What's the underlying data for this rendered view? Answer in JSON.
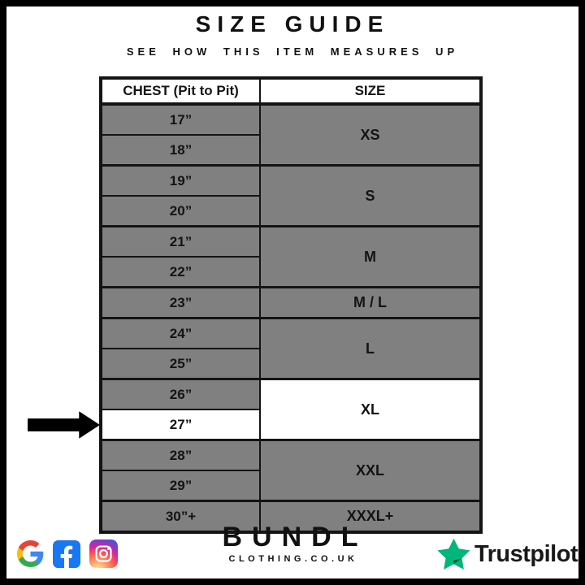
{
  "header": {
    "title": "SIZE GUIDE",
    "subtitle": "SEE HOW THIS ITEM MEASURES UP"
  },
  "table": {
    "headers": {
      "chest": "CHEST (Pit to Pit)",
      "size": "SIZE"
    },
    "groups": [
      {
        "size": "XS",
        "chest": [
          "17”",
          "18”"
        ],
        "highlighted": false
      },
      {
        "size": "S",
        "chest": [
          "19”",
          "20”"
        ],
        "highlighted": false
      },
      {
        "size": "M",
        "chest": [
          "21”",
          "22”"
        ],
        "highlighted": false
      },
      {
        "size": "M / L",
        "chest": [
          "23”"
        ],
        "highlighted": false
      },
      {
        "size": "L",
        "chest": [
          "24”",
          "25”"
        ],
        "highlighted": false
      },
      {
        "size": "XL",
        "chest": [
          "26”",
          "27”"
        ],
        "highlighted": true
      },
      {
        "size": "XXL",
        "chest": [
          "28”",
          "29”"
        ],
        "highlighted": false
      },
      {
        "size": "XXXL+",
        "chest": [
          "30”+"
        ],
        "highlighted": false
      }
    ]
  },
  "marker": {
    "points_to_chest": "27”",
    "points_to_size": "XL"
  },
  "footer": {
    "brand_name": "BUNDL",
    "brand_domain": "CLOTHING.CO.UK",
    "social_icons": [
      "google-icon",
      "facebook-icon",
      "instagram-icon"
    ],
    "trustpilot_label": "Trustpilot"
  },
  "colors": {
    "row_gray": "#808080",
    "highlight": "#ffffff",
    "table_border": "#141414",
    "facebook_blue": "#1877F2",
    "instagram_gradient": [
      "#FDF497",
      "#FD5949",
      "#D6249F",
      "#285AEB"
    ],
    "trustpilot_green": "#00B67A",
    "trustpilot_shadow": "#10613F",
    "google_red": "#EA4335",
    "google_blue": "#4285F4",
    "google_yellow": "#FBBC05",
    "google_green": "#34A853"
  }
}
